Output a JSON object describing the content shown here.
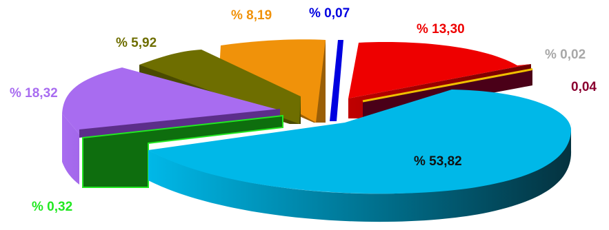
{
  "chart_data": {
    "type": "pie",
    "style": "3d-exploded",
    "legend": "none",
    "slices": [
      {
        "label": "% 53,82",
        "value": 53.82,
        "color": "#00B8E8"
      },
      {
        "label": "% 0,32",
        "value": 0.32,
        "color": "#0E6E0E",
        "edge": "#22E822"
      },
      {
        "label": "% 18,32",
        "value": 18.32,
        "color": "#A86CF0"
      },
      {
        "label": "% 5,92",
        "value": 5.92,
        "color": "#6E6E00"
      },
      {
        "label": "% 8,19",
        "value": 8.19,
        "color": "#F0920A"
      },
      {
        "label": "% 0,07",
        "value": 0.07,
        "color": "#0000E0"
      },
      {
        "label": "% 13,30",
        "value": 13.3,
        "color": "#EE0000"
      },
      {
        "label": "% 0,02",
        "value": 0.02,
        "color": "#A8A8A8"
      },
      {
        "label": "0,04",
        "value": 0.04,
        "color": "#4A0018",
        "edge": "#F0C000"
      }
    ]
  },
  "label_colors": {
    "blue": "#00B8E8",
    "green": "#22E822",
    "purple": "#A86CF0",
    "olive": "#6E6E00",
    "orange": "#F0920A",
    "darkblue": "#0000E0",
    "red": "#EE0000",
    "grey": "#A8A8A8",
    "maroon": "#8A0030"
  }
}
